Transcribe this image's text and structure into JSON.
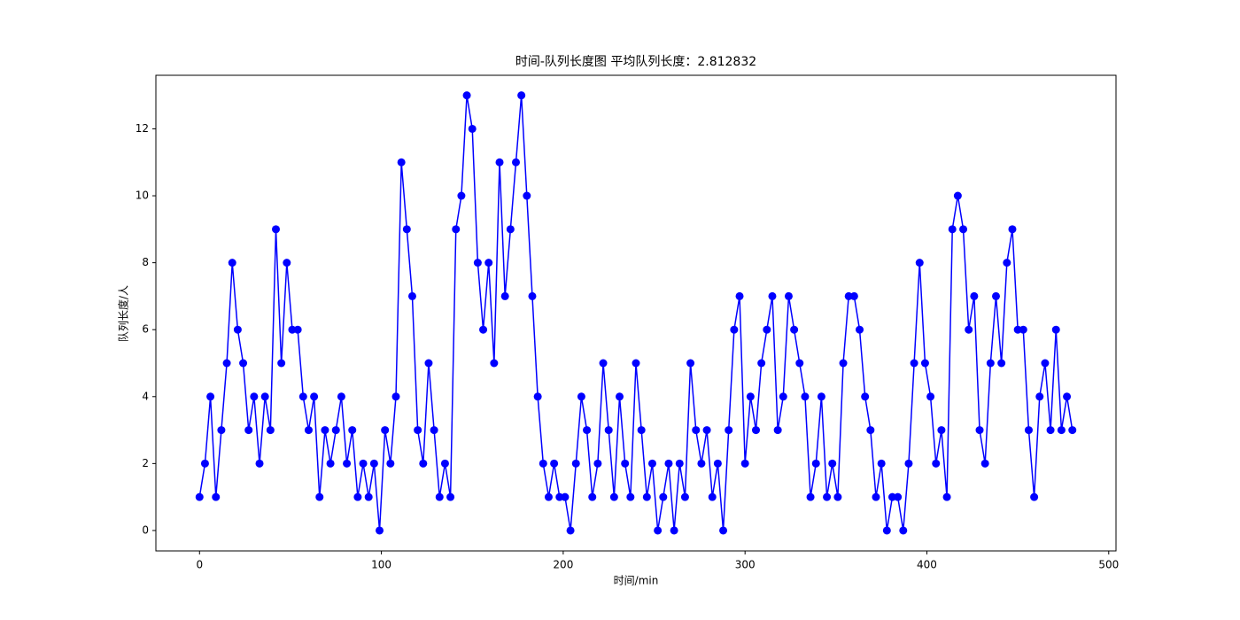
{
  "chart_data": {
    "type": "line",
    "title": "时间-队列长度图 平均队列长度：2.812832",
    "xlabel": "时间/min",
    "ylabel": "队列长度/人",
    "color": "#0000ff",
    "marker": true,
    "x": [
      0,
      3,
      6,
      9,
      12,
      15,
      18,
      21,
      24,
      27,
      30,
      33,
      36,
      39,
      42,
      45,
      48,
      51,
      54,
      57,
      60,
      63,
      66,
      69,
      72,
      75,
      78,
      81,
      84,
      87,
      90,
      93,
      96,
      99,
      102,
      105,
      108,
      111,
      114,
      117,
      120,
      123,
      126,
      129,
      132,
      135,
      138,
      141,
      144,
      147,
      150,
      153,
      156,
      159,
      162,
      165,
      168,
      171,
      174,
      177,
      180,
      183,
      186,
      189,
      192,
      195,
      198,
      201,
      204,
      207,
      210,
      213,
      216,
      219,
      222,
      225,
      228,
      231,
      234,
      237,
      240,
      243,
      246,
      249,
      252,
      255,
      258,
      261,
      264,
      267,
      270,
      273,
      276,
      279,
      282,
      285,
      288,
      291,
      294,
      297,
      300,
      303,
      306,
      309,
      312,
      315,
      318,
      321,
      324,
      327,
      330,
      333,
      336,
      339,
      342,
      345,
      348,
      351,
      354,
      357,
      360,
      363,
      366,
      369,
      372,
      375,
      378,
      381,
      384,
      387,
      390,
      393,
      396,
      399,
      402,
      405,
      408,
      411,
      414,
      417,
      420,
      423,
      426,
      429,
      432,
      435,
      438,
      441,
      444,
      447,
      450,
      453,
      456,
      459,
      462,
      465,
      468,
      471,
      474,
      477,
      480
    ],
    "values": [
      1,
      2,
      4,
      1,
      3,
      5,
      8,
      6,
      5,
      3,
      4,
      2,
      4,
      3,
      9,
      5,
      8,
      6,
      6,
      4,
      3,
      4,
      1,
      3,
      2,
      3,
      4,
      2,
      3,
      1,
      2,
      1,
      2,
      0,
      3,
      2,
      4,
      11,
      9,
      7,
      3,
      2,
      5,
      3,
      1,
      2,
      1,
      9,
      10,
      13,
      12,
      8,
      6,
      8,
      5,
      11,
      7,
      9,
      11,
      13,
      10,
      7,
      4,
      2,
      1,
      2,
      1,
      1,
      0,
      2,
      4,
      3,
      1,
      2,
      5,
      3,
      1,
      4,
      2,
      1,
      5,
      3,
      1,
      2,
      0,
      1,
      2,
      0,
      2,
      1,
      5,
      3,
      2,
      3,
      1,
      2,
      0,
      3,
      6,
      7,
      2,
      4,
      3,
      5,
      6,
      7,
      3,
      4,
      7,
      6,
      5,
      4,
      1,
      2,
      4,
      1,
      2,
      1,
      5,
      7,
      7,
      6,
      4,
      3,
      1,
      2,
      0,
      1,
      1,
      0,
      2,
      5,
      8,
      5,
      4,
      2,
      3,
      1,
      9,
      10,
      9,
      6,
      7,
      3,
      2,
      5,
      7,
      5,
      8,
      9,
      6,
      6,
      3,
      1,
      4,
      5,
      3,
      6,
      3,
      4,
      3
    ],
    "xlim": [
      -24,
      504
    ],
    "ylim": [
      -0.61,
      13.6
    ],
    "xticks": [
      0,
      100,
      200,
      300,
      400,
      500
    ],
    "yticks": [
      0,
      2,
      4,
      6,
      8,
      10,
      12
    ]
  }
}
